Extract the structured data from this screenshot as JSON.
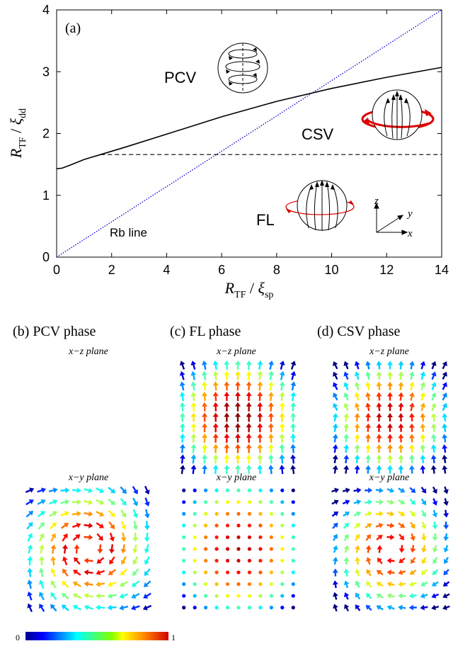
{
  "panel_a": {
    "label": "(a)",
    "region_labels": {
      "pcv": "PCV",
      "csv": "CSV",
      "fl": "FL",
      "rb_line": "Rb line"
    },
    "axis_letters": {
      "x": "x",
      "y": "y",
      "z": "z"
    }
  },
  "panels": {
    "b": {
      "title": "(b) PCV phase",
      "xz_label": "x−z plane",
      "xy_label": "x−y plane"
    },
    "c": {
      "title": "(c) FL phase",
      "xz_label": "x−z plane",
      "xy_label": "x−y plane"
    },
    "d": {
      "title": "(d) CSV phase",
      "xz_label": "x−z plane",
      "xy_label": "x−y plane"
    }
  },
  "colorbar": {
    "min_label": "0",
    "max_label": "1"
  },
  "colors": {
    "boundary": "#000000",
    "rb_line": "#0000cc",
    "arrow_red": "#dd0000",
    "colormap": [
      "#0000a0",
      "#0000ff",
      "#0090ff",
      "#00e6ff",
      "#40ffb0",
      "#a0ff40",
      "#ffee00",
      "#ff9000",
      "#ff2000",
      "#a00000"
    ]
  },
  "chart_data": {
    "type": "line",
    "xlabel": "R_TF / ξ_sp",
    "ylabel": "R_TF / ξ_dd",
    "xlim": [
      0,
      14
    ],
    "ylim": [
      0,
      4
    ],
    "xticks": [
      0,
      2,
      4,
      6,
      8,
      10,
      12,
      14
    ],
    "yticks": [
      0,
      1,
      2,
      3,
      4
    ],
    "series": [
      {
        "style": "solid",
        "x": [
          0,
          0.2,
          0.5,
          1.0,
          1.6,
          2.5,
          4,
          6,
          8,
          10,
          12,
          14
        ],
        "y": [
          1.43,
          1.44,
          1.49,
          1.58,
          1.66,
          1.78,
          1.99,
          2.27,
          2.52,
          2.73,
          2.91,
          3.07
        ]
      },
      {
        "style": "dashed",
        "x": [
          1.6,
          14
        ],
        "y": [
          1.66,
          1.66
        ]
      },
      {
        "style": "dotted",
        "x": [
          0,
          14
        ],
        "y": [
          0,
          4
        ]
      }
    ]
  }
}
